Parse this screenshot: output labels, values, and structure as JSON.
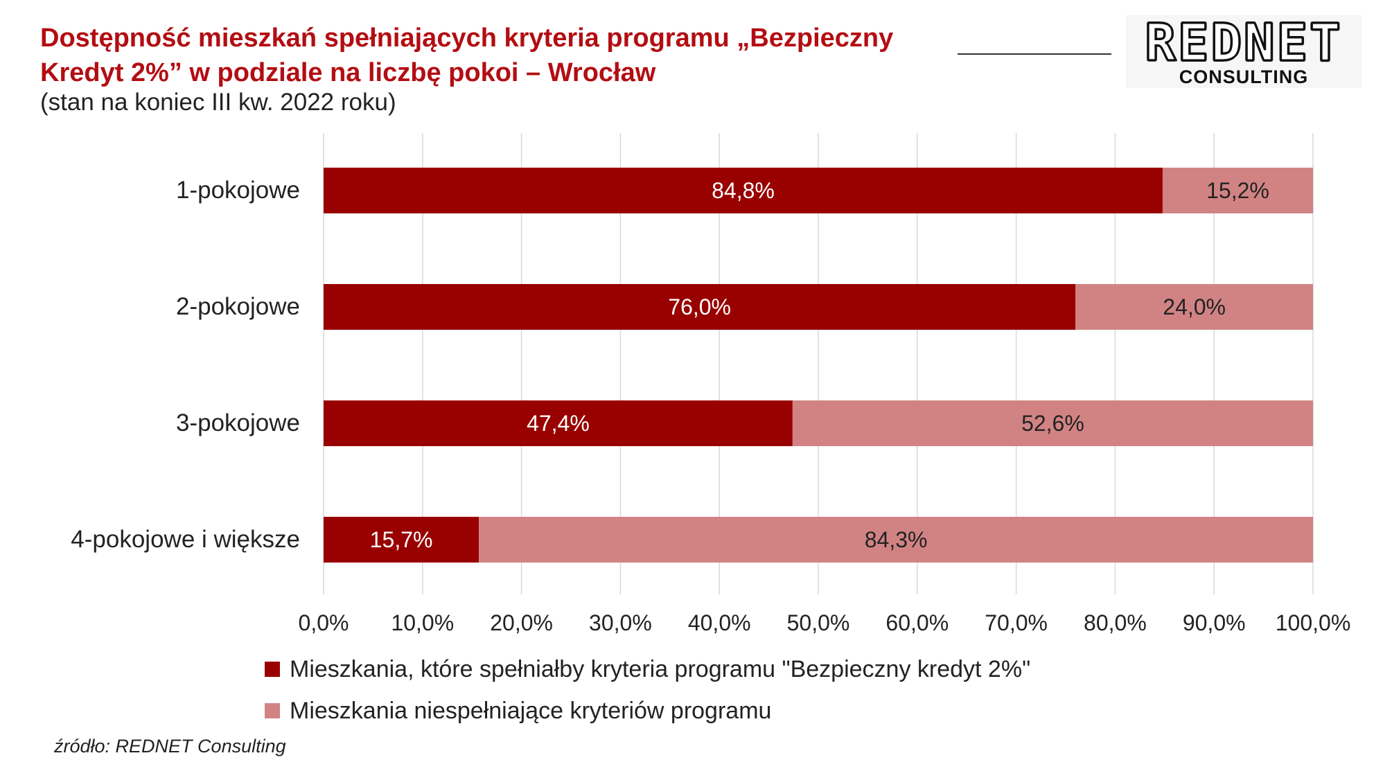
{
  "header": {
    "title": "Dostępność mieszkań spełniających kryteria programu „Bezpieczny Kredyt 2%” w podziale na liczbę pokoi – Wrocław",
    "subtitle": "(stan na koniec III kw. 2022 roku)"
  },
  "logo": {
    "main": "REDNET",
    "sub": "CONSULTING"
  },
  "source": "źródło: REDNET Consulting",
  "colors": {
    "series1": "#990000",
    "series2": "#d18383",
    "title": "#b30d12",
    "grid": "#d9d9d9"
  },
  "chart_data": {
    "type": "bar",
    "orientation": "horizontal",
    "stacked": true,
    "categories": [
      "1-pokojowe",
      "2-pokojowe",
      "3-pokojowe",
      "4-pokojowe i większe"
    ],
    "series": [
      {
        "name": "Mieszkania, które spełniałby kryteria programu \"Bezpieczny kredyt 2%\"",
        "values": [
          84.8,
          76.0,
          47.4,
          15.7
        ],
        "labels": [
          "84,8%",
          "76,0%",
          "47,4%",
          "15,7%"
        ]
      },
      {
        "name": "Mieszkania niespełniające kryteriów programu",
        "values": [
          15.2,
          24.0,
          52.6,
          84.3
        ],
        "labels": [
          "15,2%",
          "24,0%",
          "52,6%",
          "84,3%"
        ]
      }
    ],
    "xlim": [
      0,
      100
    ],
    "xticks": [
      "0,0%",
      "10,0%",
      "20,0%",
      "30,0%",
      "40,0%",
      "50,0%",
      "60,0%",
      "70,0%",
      "80,0%",
      "90,0%",
      "100,0%"
    ],
    "grid": true,
    "legend_position": "bottom"
  }
}
